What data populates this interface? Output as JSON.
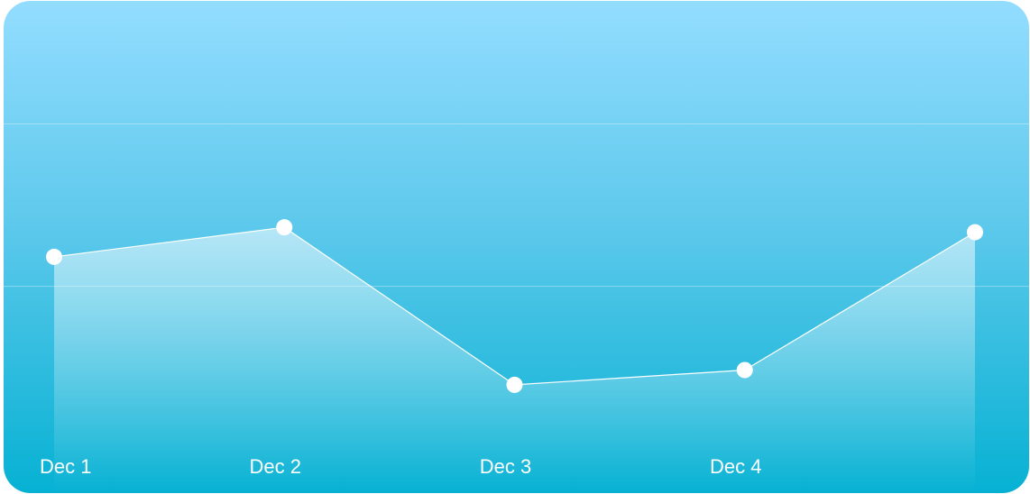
{
  "chart_data": {
    "type": "area",
    "categories": [
      "Dec 1",
      "Dec 2",
      "Dec 3",
      "Dec 4",
      ""
    ],
    "series": [
      {
        "values": [
          48,
          54,
          22,
          25,
          53
        ]
      }
    ],
    "ylim": [
      0,
      100
    ],
    "grid": true,
    "legend": "none"
  },
  "colors": {
    "background_top": "#93ddff",
    "background_bottom": "#06b1d3",
    "line": "#ffffff",
    "point": "#ffffff"
  }
}
